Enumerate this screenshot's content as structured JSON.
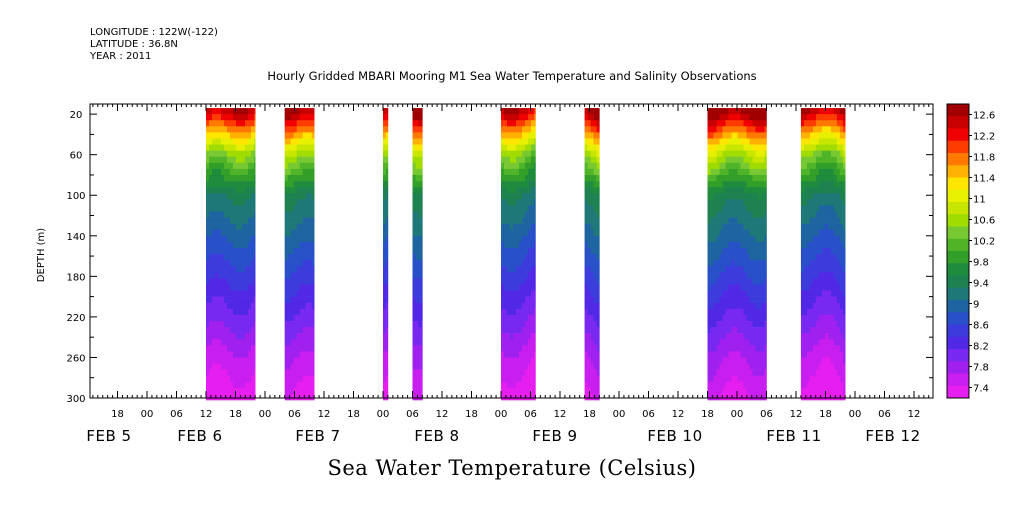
{
  "header": {
    "lines": [
      "LONGITUDE : 122W(-122)",
      "LATITUDE : 36.8N",
      "YEAR : 2011"
    ],
    "title": "Hourly Gridded MBARI Mooring M1 Sea Water Temperature and Salinity Observations"
  },
  "chart_data": {
    "type": "heatmap",
    "title": "Hourly Gridded MBARI Mooring M1 Sea Water Temperature and Salinity Observations",
    "bottom_title": "Sea Water Temperature (Celsius)",
    "ylabel": "DEPTH (m)",
    "ylim": [
      300,
      10
    ],
    "y_ticks": [
      20,
      60,
      100,
      140,
      180,
      220,
      260,
      300
    ],
    "x_hour_ticks": [
      "18",
      "00",
      "06",
      "12",
      "18",
      "00",
      "06",
      "12",
      "18",
      "00",
      "06",
      "12",
      "18",
      "00",
      "06",
      "12",
      "18",
      "00",
      "06",
      "12",
      "18",
      "00",
      "06",
      "12",
      "18",
      "00",
      "06",
      "12"
    ],
    "x_date_labels": [
      "FEB  5",
      "FEB  6",
      "FEB  7",
      "FEB  8",
      "FEB  9",
      "FEB 10",
      "FEB 11",
      "FEB 12"
    ],
    "colorbar": {
      "levels": [
        "12.6",
        "12.2",
        "11.8",
        "11.4",
        "11",
        "10.6",
        "10.2",
        "9.8",
        "9.4",
        "9",
        "8.6",
        "8.2",
        "7.8",
        "7.4"
      ],
      "colors": [
        "#a00000",
        "#c80000",
        "#f00000",
        "#ff3c00",
        "#ff7800",
        "#ffb000",
        "#ffe600",
        "#e6f000",
        "#c8e600",
        "#a0dc00",
        "#78c832",
        "#50b428",
        "#32a028",
        "#1e8c3c",
        "#1e8250",
        "#1e7878",
        "#1e64a0",
        "#2850c8",
        "#3c3cdc",
        "#5028e6",
        "#7828f0",
        "#a020f0",
        "#c81ef0",
        "#e61ef0"
      ]
    },
    "data_blocks": [
      {
        "start": "Feb 6 12:00",
        "end": "Feb 6 22:00"
      },
      {
        "start": "Feb 7 04:00",
        "end": "Feb 7 10:00"
      },
      {
        "start": "Feb 8 00:00",
        "end": "Feb 8 01:00"
      },
      {
        "start": "Feb 8 06:00",
        "end": "Feb 8 08:00"
      },
      {
        "start": "Feb 9 00:00",
        "end": "Feb 9 07:00"
      },
      {
        "start": "Feb 9 17:00",
        "end": "Feb 9 20:00"
      },
      {
        "start": "Feb 10 18:00",
        "end": "Feb 11 06:00"
      },
      {
        "start": "Feb 11 13:00",
        "end": "Feb 11 22:00"
      }
    ],
    "profile": {
      "depths": [
        20,
        60,
        100,
        140,
        180,
        220,
        260,
        300
      ],
      "temperature": [
        12.3,
        10.5,
        9.4,
        9.0,
        8.6,
        8.2,
        7.8,
        7.5
      ]
    }
  }
}
